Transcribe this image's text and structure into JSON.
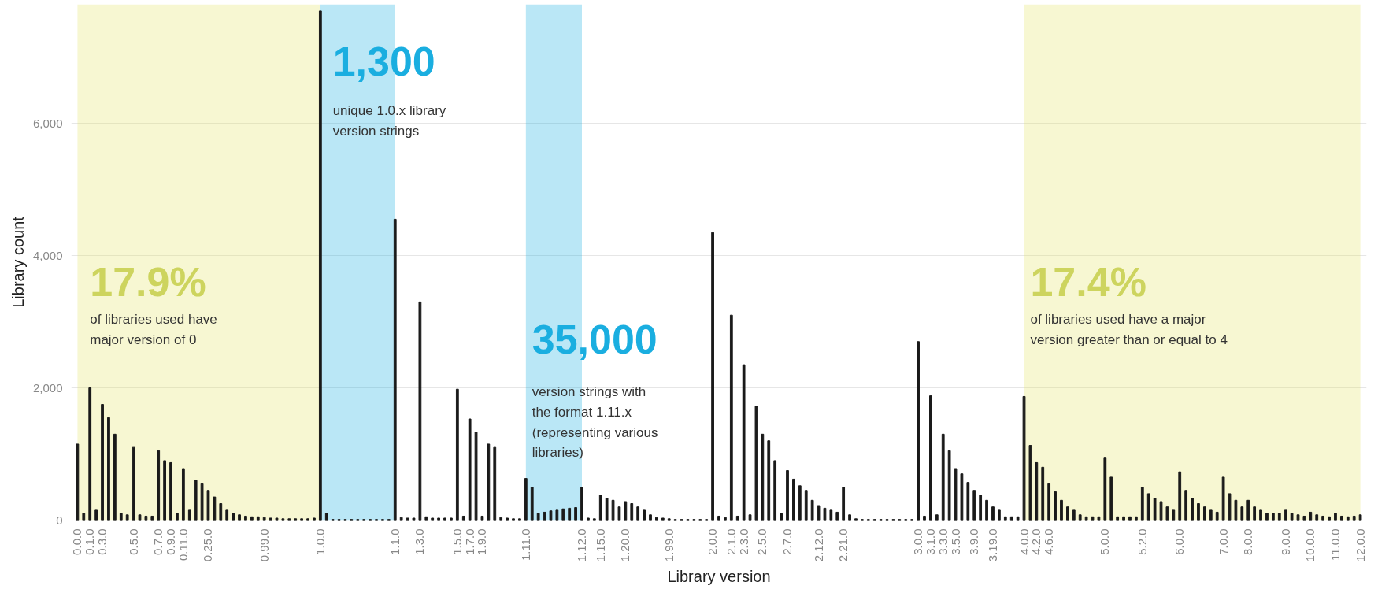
{
  "chart_data": {
    "type": "bar",
    "xlabel": "Library version",
    "ylabel": "Library count",
    "categories": [
      "0.0.0",
      null,
      "0.1.0",
      null,
      "0.3.0",
      null,
      null,
      null,
      null,
      "0.5.0",
      null,
      null,
      null,
      "0.7.0",
      null,
      "0.9.0",
      null,
      "0.11.0",
      null,
      null,
      null,
      "0.25.0",
      null,
      null,
      null,
      null,
      null,
      null,
      null,
      null,
      "0.99.0",
      null,
      null,
      null,
      null,
      null,
      null,
      null,
      null,
      "1.0.0",
      null,
      null,
      null,
      null,
      null,
      null,
      null,
      null,
      null,
      null,
      null,
      "1.1.0",
      null,
      null,
      null,
      "1.3.0",
      null,
      null,
      null,
      null,
      null,
      "1.5.0",
      null,
      "1.7.0",
      null,
      "1.9.0",
      null,
      null,
      null,
      null,
      null,
      null,
      "1.11.0",
      null,
      null,
      null,
      null,
      null,
      null,
      null,
      null,
      "1.12.0",
      null,
      null,
      "1.15.0",
      null,
      null,
      null,
      "1.20.0",
      null,
      null,
      null,
      null,
      null,
      null,
      "1.99.0",
      null,
      null,
      null,
      null,
      null,
      null,
      "2.0.0",
      null,
      null,
      "2.1.0",
      null,
      "2.3.0",
      null,
      null,
      "2.5.0",
      null,
      null,
      null,
      "2.7.0",
      null,
      null,
      null,
      null,
      "2.12.0",
      null,
      null,
      null,
      "2.21.0",
      null,
      null,
      null,
      null,
      null,
      null,
      null,
      null,
      null,
      null,
      null,
      "3.0.0",
      null,
      "3.1.0",
      null,
      "3.3.0",
      null,
      "3.5.0",
      null,
      null,
      "3.9.0",
      null,
      null,
      "3.19.0",
      null,
      null,
      null,
      null,
      "4.0.0",
      null,
      "4.2.0",
      null,
      "4.6.0",
      null,
      null,
      null,
      null,
      null,
      null,
      null,
      null,
      "5.0.0",
      null,
      null,
      null,
      null,
      null,
      "5.2.0",
      null,
      null,
      null,
      null,
      null,
      "6.0.0",
      null,
      null,
      null,
      null,
      null,
      null,
      "7.0.0",
      null,
      null,
      null,
      "8.0.0",
      null,
      null,
      null,
      null,
      null,
      "9.0.0",
      null,
      null,
      null,
      "10.0.0",
      null,
      null,
      null,
      "11.0.0",
      null,
      null,
      null,
      "12.0.0"
    ],
    "values": [
      1150,
      100,
      2000,
      150,
      1750,
      1550,
      1300,
      100,
      80,
      1100,
      80,
      60,
      60,
      1050,
      900,
      870,
      100,
      780,
      150,
      600,
      550,
      450,
      350,
      250,
      150,
      100,
      80,
      60,
      50,
      50,
      40,
      30,
      30,
      20,
      20,
      20,
      20,
      20,
      30,
      7700,
      100,
      10,
      10,
      10,
      10,
      10,
      10,
      10,
      10,
      10,
      10,
      4550,
      40,
      30,
      30,
      3300,
      50,
      30,
      30,
      30,
      30,
      1980,
      60,
      1530,
      1330,
      60,
      1150,
      1100,
      40,
      30,
      20,
      20,
      630,
      500,
      100,
      120,
      140,
      150,
      170,
      180,
      190,
      500,
      30,
      20,
      380,
      330,
      300,
      200,
      280,
      250,
      200,
      150,
      80,
      40,
      30,
      20,
      10,
      10,
      10,
      10,
      10,
      10,
      4350,
      60,
      40,
      3100,
      60,
      2350,
      80,
      1720,
      1300,
      1200,
      900,
      100,
      750,
      620,
      520,
      450,
      300,
      220,
      180,
      150,
      120,
      500,
      80,
      20,
      10,
      10,
      10,
      10,
      10,
      10,
      10,
      10,
      10,
      2700,
      60,
      1880,
      80,
      1300,
      1050,
      780,
      700,
      570,
      450,
      380,
      300,
      200,
      150,
      50,
      50,
      50,
      1870,
      1130,
      870,
      800,
      550,
      430,
      300,
      200,
      150,
      80,
      50,
      50,
      50,
      950,
      650,
      50,
      50,
      50,
      50,
      500,
      400,
      330,
      280,
      200,
      150,
      730,
      450,
      330,
      250,
      200,
      150,
      120,
      650,
      400,
      300,
      200,
      300,
      200,
      150,
      100,
      100,
      100,
      150,
      100,
      80,
      60,
      120,
      80,
      60,
      50,
      100,
      60,
      50,
      60,
      80
    ],
    "color": "#1a1a1a",
    "ylim": [
      0,
      7800
    ],
    "yticks": [
      0,
      {
        "value": 2000,
        "label": "2,000"
      },
      {
        "value": 4000,
        "label": "4,000"
      },
      {
        "value": 6000,
        "label": "6,000"
      }
    ],
    "grid": "y",
    "bands": [
      {
        "axis": "x",
        "from": "0.0.0",
        "to": "1.0.0",
        "color": "#e3e36a"
      },
      {
        "axis": "x",
        "from": "1.0.0",
        "to": "1.1.0",
        "color": "#1aaee0"
      },
      {
        "axis": "x",
        "from": "1.11.0",
        "to": "1.12.0",
        "color": "#1aaee0"
      },
      {
        "axis": "x",
        "from": "4.0.0",
        "to": "12.0.0",
        "color": "#e3e36a"
      }
    ],
    "annotations": [
      "1,300",
      "unique 1.0.x library\nversion strings",
      "35,000",
      "version strings with\nthe format 1.11.x\n(representing various\nlibraries)",
      "17.9%",
      "of libraries used have\nmajor version of 0",
      "17.4%",
      "of libraries used have a major\nversion greater than or equal to 4"
    ]
  }
}
